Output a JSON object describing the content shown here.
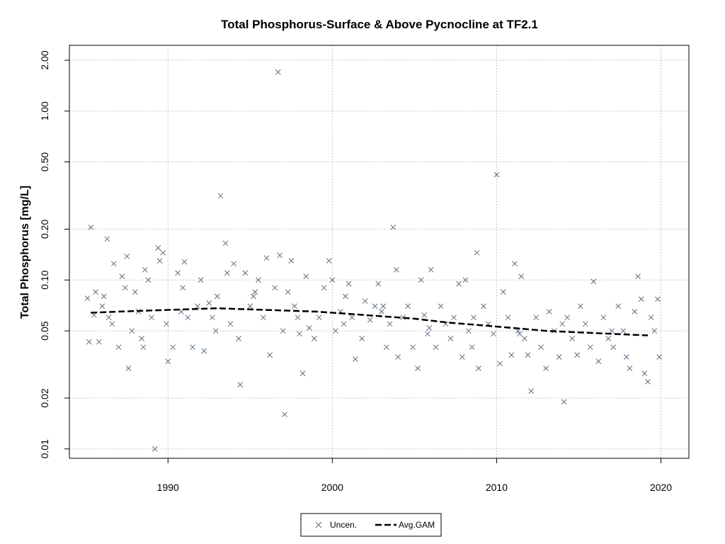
{
  "chart_data": {
    "type": "scatter",
    "title": "Total Phosphorus-Surface & Above Pycnocline at TF2.1",
    "xlabel": "",
    "ylabel": "Total Phosphorus [mg/L]",
    "xlim": [
      1984.0,
      2021.7
    ],
    "ylim": [
      0.0088,
      2.45
    ],
    "y_scale": "log",
    "x_ticks": [
      1990,
      2000,
      2010,
      2020
    ],
    "x_tick_labels": [
      "1990",
      "2000",
      "2010",
      "2020"
    ],
    "y_ticks": [
      0.01,
      0.02,
      0.05,
      0.1,
      0.2,
      0.5,
      1.0,
      2.0
    ],
    "y_tick_labels": [
      "0.01",
      "0.02",
      "0.05",
      "0.10",
      "0.20",
      "0.50",
      "1.00",
      "2.00"
    ],
    "grid": true,
    "legend_position": "bottom-center",
    "colors": {
      "points": "#5a6e82",
      "gam": "#000000",
      "grid": "#c8c8c8"
    },
    "series": [
      {
        "name": "Uncen.",
        "marker": "x",
        "points": [
          [
            1985.3,
            0.205
          ],
          [
            1985.1,
            0.078
          ],
          [
            1985.2,
            0.043
          ],
          [
            1985.5,
            0.062
          ],
          [
            1985.6,
            0.085
          ],
          [
            1985.8,
            0.043
          ],
          [
            1986.0,
            0.07
          ],
          [
            1986.1,
            0.08
          ],
          [
            1986.3,
            0.175
          ],
          [
            1986.6,
            0.055
          ],
          [
            1986.7,
            0.125
          ],
          [
            1987.0,
            0.04
          ],
          [
            1987.2,
            0.105
          ],
          [
            1987.4,
            0.09
          ],
          [
            1987.5,
            0.138
          ],
          [
            1987.6,
            0.03
          ],
          [
            1987.8,
            0.05
          ],
          [
            1988.0,
            0.085
          ],
          [
            1988.2,
            0.065
          ],
          [
            1988.4,
            0.045
          ],
          [
            1988.6,
            0.115
          ],
          [
            1988.8,
            0.1
          ],
          [
            1989.0,
            0.06
          ],
          [
            1989.2,
            0.01
          ],
          [
            1989.4,
            0.155
          ],
          [
            1989.5,
            0.13
          ],
          [
            1989.7,
            0.145
          ],
          [
            1989.9,
            0.055
          ],
          [
            1990.0,
            0.033
          ],
          [
            1990.3,
            0.04
          ],
          [
            1990.6,
            0.11
          ],
          [
            1990.9,
            0.09
          ],
          [
            1991.0,
            0.128
          ],
          [
            1991.2,
            0.06
          ],
          [
            1991.5,
            0.04
          ],
          [
            1991.8,
            0.07
          ],
          [
            1992.0,
            0.1
          ],
          [
            1992.2,
            0.038
          ],
          [
            1992.5,
            0.073
          ],
          [
            1992.7,
            0.06
          ],
          [
            1993.0,
            0.08
          ],
          [
            1993.2,
            0.315
          ],
          [
            1993.5,
            0.165
          ],
          [
            1993.6,
            0.11
          ],
          [
            1993.8,
            0.055
          ],
          [
            1994.0,
            0.125
          ],
          [
            1994.3,
            0.045
          ],
          [
            1994.4,
            0.024
          ],
          [
            1994.7,
            0.11
          ],
          [
            1995.0,
            0.07
          ],
          [
            1995.3,
            0.085
          ],
          [
            1995.5,
            0.1
          ],
          [
            1995.8,
            0.06
          ],
          [
            1996.0,
            0.135
          ],
          [
            1996.2,
            0.036
          ],
          [
            1996.5,
            0.09
          ],
          [
            1996.7,
            1.7
          ],
          [
            1996.8,
            0.14
          ],
          [
            1997.0,
            0.05
          ],
          [
            1997.1,
            0.016
          ],
          [
            1997.3,
            0.085
          ],
          [
            1997.5,
            0.13
          ],
          [
            1997.7,
            0.07
          ],
          [
            1998.0,
            0.048
          ],
          [
            1998.2,
            0.028
          ],
          [
            1998.4,
            0.105
          ],
          [
            1998.6,
            0.052
          ],
          [
            1998.9,
            0.045
          ],
          [
            1999.2,
            0.06
          ],
          [
            1999.5,
            0.09
          ],
          [
            1999.8,
            0.13
          ],
          [
            2000.0,
            0.1
          ],
          [
            2000.2,
            0.05
          ],
          [
            2000.5,
            0.065
          ],
          [
            2000.8,
            0.08
          ],
          [
            2001.0,
            0.095
          ],
          [
            2001.2,
            0.06
          ],
          [
            2001.4,
            0.034
          ],
          [
            2001.8,
            0.045
          ],
          [
            2002.0,
            0.075
          ],
          [
            2002.3,
            0.058
          ],
          [
            2002.6,
            0.07
          ],
          [
            2002.8,
            0.095
          ],
          [
            2003.0,
            0.065
          ],
          [
            2003.3,
            0.04
          ],
          [
            2003.5,
            0.055
          ],
          [
            2003.7,
            0.205
          ],
          [
            2003.9,
            0.115
          ],
          [
            2004.0,
            0.035
          ],
          [
            2004.3,
            0.06
          ],
          [
            2004.6,
            0.07
          ],
          [
            2004.9,
            0.04
          ],
          [
            2005.2,
            0.03
          ],
          [
            2005.4,
            0.1
          ],
          [
            2005.6,
            0.062
          ],
          [
            2005.8,
            0.048
          ],
          [
            2006.0,
            0.115
          ],
          [
            2006.3,
            0.04
          ],
          [
            2006.6,
            0.07
          ],
          [
            2006.9,
            0.055
          ],
          [
            2007.2,
            0.045
          ],
          [
            2007.4,
            0.06
          ],
          [
            2007.7,
            0.095
          ],
          [
            2007.9,
            0.035
          ],
          [
            2008.1,
            0.1
          ],
          [
            2008.3,
            0.05
          ],
          [
            2008.5,
            0.04
          ],
          [
            2008.8,
            0.145
          ],
          [
            2008.9,
            0.03
          ],
          [
            2009.2,
            0.07
          ],
          [
            2009.5,
            0.055
          ],
          [
            2009.8,
            0.048
          ],
          [
            2010.0,
            0.42
          ],
          [
            2010.2,
            0.032
          ],
          [
            2010.4,
            0.085
          ],
          [
            2010.7,
            0.06
          ],
          [
            2010.9,
            0.036
          ],
          [
            2011.1,
            0.125
          ],
          [
            2011.3,
            0.05
          ],
          [
            2011.5,
            0.105
          ],
          [
            2011.7,
            0.045
          ],
          [
            2011.9,
            0.036
          ],
          [
            2012.1,
            0.022
          ],
          [
            2012.4,
            0.06
          ],
          [
            2012.7,
            0.04
          ],
          [
            2013.0,
            0.03
          ],
          [
            2013.2,
            0.065
          ],
          [
            2013.5,
            0.05
          ],
          [
            2013.8,
            0.035
          ],
          [
            2014.1,
            0.019
          ],
          [
            2014.3,
            0.06
          ],
          [
            2014.6,
            0.045
          ],
          [
            2014.9,
            0.036
          ],
          [
            2015.1,
            0.07
          ],
          [
            2015.4,
            0.055
          ],
          [
            2015.7,
            0.04
          ],
          [
            2015.9,
            0.098
          ],
          [
            2016.2,
            0.033
          ],
          [
            2016.5,
            0.06
          ],
          [
            2016.8,
            0.045
          ],
          [
            2017.1,
            0.04
          ],
          [
            2017.4,
            0.07
          ],
          [
            2017.7,
            0.05
          ],
          [
            2017.9,
            0.035
          ],
          [
            2018.1,
            0.03
          ],
          [
            2018.4,
            0.065
          ],
          [
            2018.6,
            0.105
          ],
          [
            2018.8,
            0.077
          ],
          [
            2019.0,
            0.028
          ],
          [
            2019.2,
            0.025
          ],
          [
            2019.4,
            0.06
          ],
          [
            2019.6,
            0.05
          ],
          [
            2019.8,
            0.077
          ],
          [
            2019.9,
            0.035
          ],
          [
            1986.4,
            0.06
          ],
          [
            1988.5,
            0.04
          ],
          [
            1990.8,
            0.065
          ],
          [
            1992.9,
            0.05
          ],
          [
            1995.2,
            0.08
          ],
          [
            1997.9,
            0.06
          ],
          [
            2000.7,
            0.055
          ],
          [
            2003.1,
            0.07
          ],
          [
            2005.9,
            0.052
          ],
          [
            2008.6,
            0.06
          ],
          [
            2011.4,
            0.048
          ],
          [
            2014.0,
            0.055
          ],
          [
            2017.0,
            0.05
          ]
        ]
      },
      {
        "name": "Avg.GAM",
        "line_style": "dashed",
        "points": [
          [
            1985.3,
            0.064
          ],
          [
            1987.0,
            0.065
          ],
          [
            1989.0,
            0.066
          ],
          [
            1991.0,
            0.067
          ],
          [
            1993.0,
            0.068
          ],
          [
            1995.0,
            0.067
          ],
          [
            1997.0,
            0.066
          ],
          [
            1999.0,
            0.065
          ],
          [
            2001.0,
            0.063
          ],
          [
            2003.0,
            0.061
          ],
          [
            2005.0,
            0.059
          ],
          [
            2007.0,
            0.056
          ],
          [
            2009.0,
            0.054
          ],
          [
            2011.0,
            0.052
          ],
          [
            2013.0,
            0.05
          ],
          [
            2015.0,
            0.049
          ],
          [
            2017.0,
            0.048
          ],
          [
            2019.2,
            0.047
          ]
        ]
      }
    ]
  }
}
